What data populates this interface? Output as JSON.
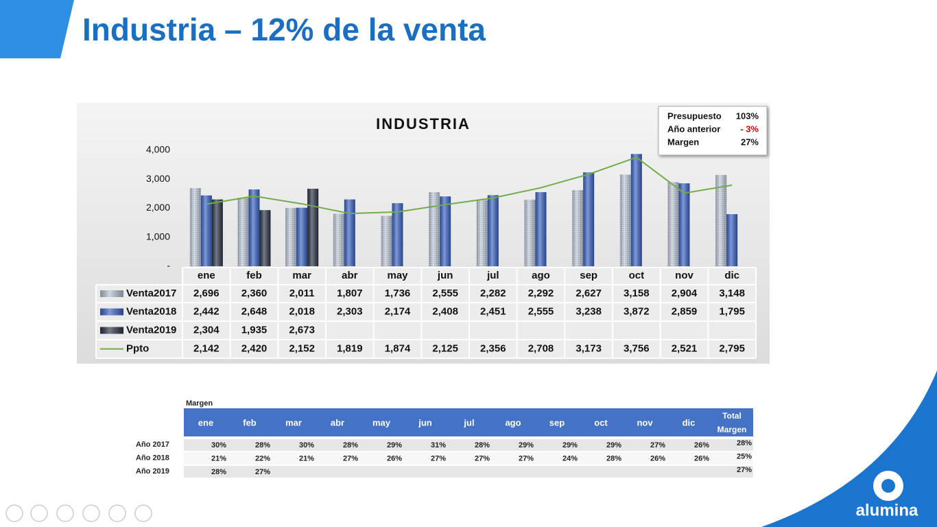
{
  "slide": {
    "title": "Industria – 12% de la venta",
    "logo": "alumina"
  },
  "chart_data": {
    "type": "bar",
    "title": "INDUSTRIA",
    "categories": [
      "ene",
      "feb",
      "mar",
      "abr",
      "may",
      "jun",
      "jul",
      "ago",
      "sep",
      "oct",
      "nov",
      "dic"
    ],
    "series": [
      {
        "name": "Venta2017",
        "color": "#b4c0d2",
        "values": [
          2696,
          2360,
          2011,
          1807,
          1736,
          2555,
          2282,
          2292,
          2627,
          3158,
          2904,
          3148
        ],
        "value_labels": [
          "2,696",
          "2,360",
          "2,011",
          "1,807",
          "1,736",
          "2,555",
          "2,282",
          "2,292",
          "2,627",
          "3,158",
          "2,904",
          "3,148"
        ]
      },
      {
        "name": "Venta2018",
        "color": "#3b63c4",
        "values": [
          2442,
          2648,
          2018,
          2303,
          2174,
          2408,
          2451,
          2555,
          3238,
          3872,
          2859,
          1795
        ],
        "value_labels": [
          "2,442",
          "2,648",
          "2,018",
          "2,303",
          "2,174",
          "2,408",
          "2,451",
          "2,555",
          "3,238",
          "3,872",
          "2,859",
          "1,795"
        ]
      },
      {
        "name": "Venta2019",
        "color": "#2b3546",
        "values": [
          2304,
          1935,
          2673,
          null,
          null,
          null,
          null,
          null,
          null,
          null,
          null,
          null
        ],
        "value_labels": [
          "2,304",
          "1,935",
          "2,673",
          null,
          null,
          null,
          null,
          null,
          null,
          null,
          null,
          null
        ]
      },
      {
        "name": "Ppto",
        "type": "line",
        "color": "#70ad47",
        "values": [
          2142,
          2420,
          2152,
          1819,
          1874,
          2125,
          2356,
          2708,
          3173,
          3756,
          2521,
          2795
        ],
        "value_labels": [
          "2,142",
          "2,420",
          "2,152",
          "1,819",
          "1,874",
          "2,125",
          "2,356",
          "2,708",
          "3,173",
          "3,756",
          "2,521",
          "2,795"
        ]
      }
    ],
    "ylim": [
      0,
      4000
    ],
    "yticks": [
      {
        "value": 0,
        "label": "-"
      },
      {
        "value": 1000,
        "label": "1,000"
      },
      {
        "value": 2000,
        "label": "2,000"
      },
      {
        "value": 3000,
        "label": "3,000"
      },
      {
        "value": 4000,
        "label": "4,000"
      }
    ],
    "grid": false
  },
  "kpi": {
    "rows": [
      [
        "Presupuesto",
        "103%"
      ],
      [
        "Año anterior",
        "- 3%"
      ],
      [
        "Margen",
        "27%"
      ]
    ]
  },
  "margin_table": {
    "caption": "Margen",
    "columns": [
      "ene",
      "feb",
      "mar",
      "abr",
      "may",
      "jun",
      "jul",
      "ago",
      "sep",
      "oct",
      "nov",
      "dic"
    ],
    "total_header": "Total Margen",
    "rows": [
      {
        "label": "Año 2017",
        "cells": [
          "30%",
          "28%",
          "30%",
          "28%",
          "29%",
          "31%",
          "28%",
          "29%",
          "29%",
          "29%",
          "27%",
          "26%"
        ],
        "total": "28%"
      },
      {
        "label": "Año 2018",
        "cells": [
          "21%",
          "22%",
          "21%",
          "27%",
          "26%",
          "27%",
          "27%",
          "27%",
          "24%",
          "28%",
          "26%",
          "26%"
        ],
        "total": "25%"
      },
      {
        "label": "Año 2019",
        "cells": [
          "28%",
          "27%",
          null,
          null,
          null,
          null,
          null,
          null,
          null,
          null,
          null,
          null
        ],
        "total": "27%"
      }
    ]
  }
}
